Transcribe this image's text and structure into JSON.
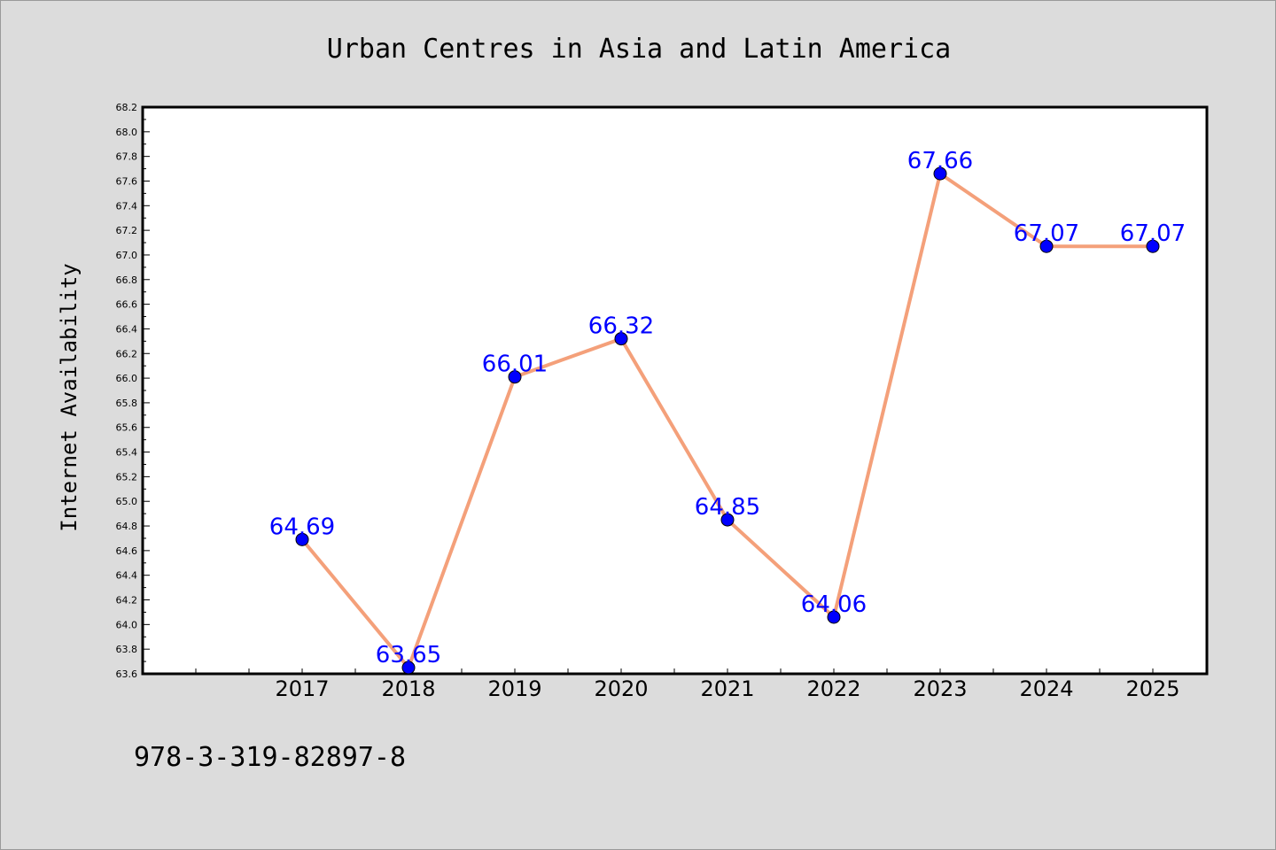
{
  "chart_data": {
    "type": "line",
    "title": "Urban Centres in Asia and Latin America",
    "xlabel": "",
    "ylabel": "Internet Availability",
    "categories": [
      "2017",
      "2018",
      "2019",
      "2020",
      "2021",
      "2022",
      "2023",
      "2024",
      "2025"
    ],
    "series": [
      {
        "values": [
          64.69,
          63.65,
          66.01,
          66.32,
          64.85,
          64.06,
          67.66,
          67.07,
          67.07
        ],
        "data_labels": [
          "64.69",
          "63.65",
          "66.01",
          "66.32",
          "64.85",
          "64.06",
          "67.66",
          "67.07",
          "67.07"
        ],
        "line_color": "#f4a07a",
        "marker_color": "#0000ff",
        "label_color": "#0000ff"
      }
    ],
    "ylim": [
      63.6,
      68.2
    ],
    "yticks": [
      "63.6",
      "63.8",
      "64.0",
      "64.2",
      "64.4",
      "64.6",
      "64.8",
      "65.0",
      "65.2",
      "65.4",
      "65.6",
      "65.8",
      "66.0",
      "66.2",
      "66.4",
      "66.6",
      "66.8",
      "67.0",
      "67.2",
      "67.4",
      "67.6",
      "67.8",
      "68.0",
      "68.2"
    ],
    "grid": false,
    "legend": "none"
  },
  "footnote": "978-3-319-82897-8",
  "colors": {
    "background": "#dcdcdc",
    "plot_background": "#ffffff"
  }
}
